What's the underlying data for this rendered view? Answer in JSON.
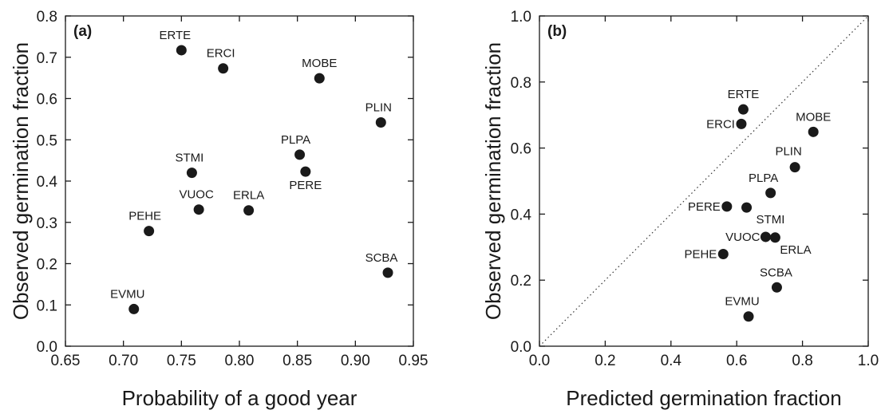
{
  "chart_data": [
    {
      "type": "scatter",
      "panel_label": "(a)",
      "xlabel": "Probability of a good year",
      "ylabel": "Observed germination fraction",
      "xlim": [
        0.65,
        0.95
      ],
      "ylim": [
        0.0,
        0.8
      ],
      "xticks": [
        "0.65",
        "0.70",
        "0.75",
        "0.80",
        "0.85",
        "0.90",
        "0.95"
      ],
      "yticks": [
        "0.0",
        "0.1",
        "0.2",
        "0.3",
        "0.4",
        "0.5",
        "0.6",
        "0.7",
        "0.8"
      ],
      "grid": false,
      "points": [
        {
          "label": "ERTE",
          "x": 0.75,
          "y": 0.717
        },
        {
          "label": "ERCI",
          "x": 0.786,
          "y": 0.673
        },
        {
          "label": "MOBE",
          "x": 0.869,
          "y": 0.649
        },
        {
          "label": "PLIN",
          "x": 0.922,
          "y": 0.542
        },
        {
          "label": "PLPA",
          "x": 0.852,
          "y": 0.464
        },
        {
          "label": "PERE",
          "x": 0.857,
          "y": 0.423
        },
        {
          "label": "STMI",
          "x": 0.759,
          "y": 0.42
        },
        {
          "label": "VUOC",
          "x": 0.765,
          "y": 0.331
        },
        {
          "label": "ERLA",
          "x": 0.808,
          "y": 0.329
        },
        {
          "label": "PEHE",
          "x": 0.722,
          "y": 0.279
        },
        {
          "label": "SCBA",
          "x": 0.928,
          "y": 0.178
        },
        {
          "label": "EVMU",
          "x": 0.709,
          "y": 0.09
        }
      ]
    },
    {
      "type": "scatter",
      "panel_label": "(b)",
      "xlabel": "Predicted germination fraction",
      "ylabel": "Observed germination fraction",
      "xlim": [
        0.0,
        1.0
      ],
      "ylim": [
        0.0,
        1.0
      ],
      "xticks": [
        "0.0",
        "0.2",
        "0.4",
        "0.6",
        "0.8",
        "1.0"
      ],
      "yticks": [
        "0.0",
        "0.2",
        "0.4",
        "0.6",
        "0.8",
        "1.0"
      ],
      "grid": false,
      "reference_line": "1:1 dotted",
      "points": [
        {
          "label": "ERTE",
          "x": 0.62,
          "y": 0.717
        },
        {
          "label": "ERCI",
          "x": 0.614,
          "y": 0.673
        },
        {
          "label": "MOBE",
          "x": 0.833,
          "y": 0.649
        },
        {
          "label": "PLIN",
          "x": 0.777,
          "y": 0.542
        },
        {
          "label": "PLPA",
          "x": 0.703,
          "y": 0.464
        },
        {
          "label": "PERE",
          "x": 0.57,
          "y": 0.423
        },
        {
          "label": "STMI",
          "x": 0.63,
          "y": 0.42
        },
        {
          "label": "VUOC",
          "x": 0.688,
          "y": 0.331
        },
        {
          "label": "ERLA",
          "x": 0.717,
          "y": 0.329
        },
        {
          "label": "PEHE",
          "x": 0.559,
          "y": 0.279
        },
        {
          "label": "SCBA",
          "x": 0.722,
          "y": 0.178
        },
        {
          "label": "EVMU",
          "x": 0.636,
          "y": 0.09
        }
      ]
    }
  ]
}
